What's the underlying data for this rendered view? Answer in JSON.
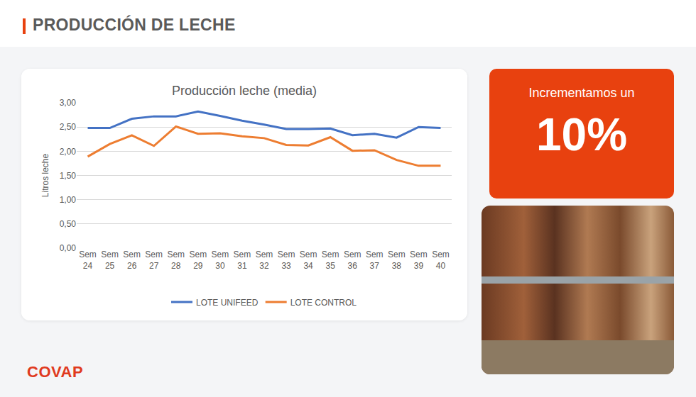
{
  "header": {
    "title": "PRODUCCIÓN DE LECHE"
  },
  "highlight": {
    "text": "Incrementamos un",
    "value": "10%"
  },
  "logo": "COVAP",
  "chart_data": {
    "type": "line",
    "title": "Producción leche (media)",
    "y_label": "Litros leche",
    "categories": [
      "Sem 24",
      "Sem 25",
      "Sem 26",
      "Sem 27",
      "Sem 28",
      "Sem 29",
      "Sem 30",
      "Sem 31",
      "Sem 32",
      "Sem 33",
      "Sem 34",
      "Sem 35",
      "Sem 36",
      "Sem 37",
      "Sem 38",
      "Sem 39",
      "Sem 40"
    ],
    "series": [
      {
        "name": "LOTE UNIFEED",
        "color": "#4472c4",
        "values": [
          2.48,
          2.48,
          2.67,
          2.72,
          2.72,
          2.82,
          2.73,
          2.63,
          2.55,
          2.46,
          2.46,
          2.47,
          2.33,
          2.36,
          2.28,
          2.5,
          2.48
        ]
      },
      {
        "name": "LOTE CONTROL",
        "color": "#ed7d31",
        "values": [
          1.89,
          2.15,
          2.33,
          2.11,
          2.51,
          2.36,
          2.37,
          2.31,
          2.27,
          2.13,
          2.12,
          2.29,
          2.01,
          2.02,
          1.82,
          1.7,
          1.7
        ]
      }
    ],
    "ylim": [
      0,
      3
    ],
    "yticks": [
      {
        "value": 0,
        "label": "0,00"
      },
      {
        "value": 0.5,
        "label": "0,50"
      },
      {
        "value": 1,
        "label": "1,00"
      },
      {
        "value": 1.5,
        "label": "1,50"
      },
      {
        "value": 2,
        "label": "2,00"
      },
      {
        "value": 2.5,
        "label": "2,50"
      },
      {
        "value": 3,
        "label": "3,00"
      }
    ],
    "grid": true,
    "legend": "bottom"
  }
}
